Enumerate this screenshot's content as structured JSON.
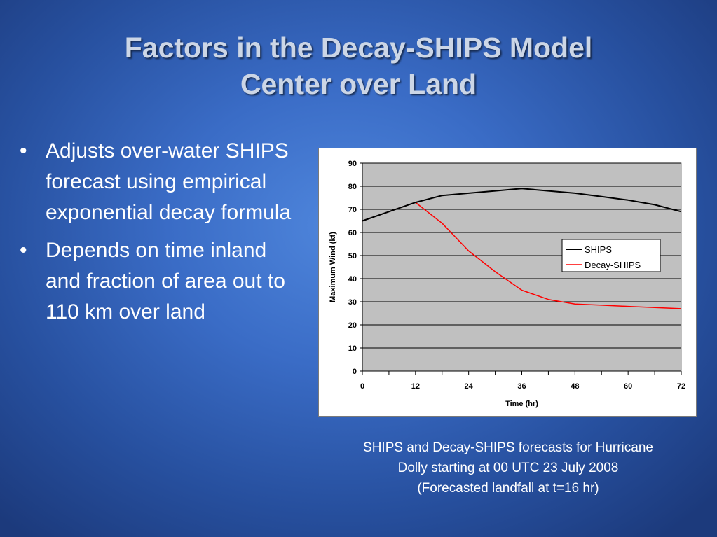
{
  "slide": {
    "title_line1": "Factors in the Decay-SHIPS Model",
    "title_line2": "Center over Land",
    "bullets": [
      {
        "marker": "•",
        "text": "Adjusts over-water SHIPS forecast using empirical exponential decay formula"
      },
      {
        "marker": "•",
        "text": "Depends on time inland and fraction of area out to 110 km over land"
      }
    ],
    "caption_line1": "SHIPS and Decay-SHIPS forecasts for Hurricane",
    "caption_line2": "Dolly starting at 00 UTC 23 July 2008",
    "caption_line3": "(Forecasted landfall at t=16 hr)"
  },
  "chart_data": {
    "type": "line",
    "title": "",
    "xlabel": "Time (hr)",
    "ylabel": "Maximum Wind (kt)",
    "xlim": [
      0,
      72
    ],
    "ylim": [
      0,
      90
    ],
    "xticks": [
      0,
      12,
      24,
      36,
      48,
      60,
      72
    ],
    "yticks": [
      0,
      10,
      20,
      30,
      40,
      50,
      60,
      70,
      80,
      90
    ],
    "grid": "horizontal",
    "legend_position": "right",
    "plot_background": "#c0c0c0",
    "series": [
      {
        "name": "SHIPS",
        "color": "#000000",
        "x": [
          0,
          6,
          12,
          18,
          24,
          30,
          36,
          42,
          48,
          54,
          60,
          66,
          72
        ],
        "y": [
          65,
          69,
          73,
          76,
          77,
          78,
          79,
          78,
          77,
          75.5,
          74,
          72,
          69
        ]
      },
      {
        "name": "Decay-SHIPS",
        "color": "#ff0000",
        "x": [
          0,
          6,
          12,
          18,
          24,
          30,
          36,
          42,
          48,
          54,
          60,
          66,
          72
        ],
        "y": [
          65,
          69,
          73,
          64,
          52,
          43,
          35,
          31,
          29,
          28.5,
          28,
          27.5,
          27
        ]
      }
    ]
  }
}
